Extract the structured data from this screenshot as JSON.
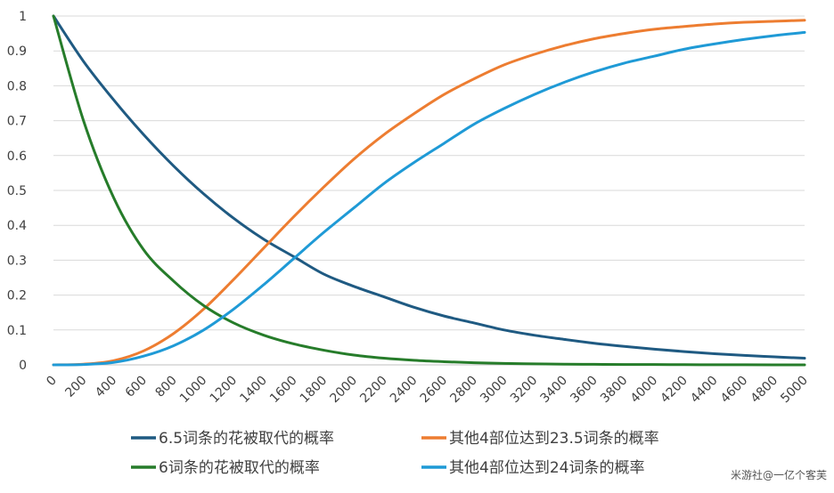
{
  "chart_data": {
    "type": "line",
    "x": [
      0,
      200,
      400,
      600,
      800,
      1000,
      1200,
      1400,
      1600,
      1800,
      2000,
      2200,
      2400,
      2600,
      2800,
      3000,
      3200,
      3400,
      3600,
      3800,
      4000,
      4200,
      4400,
      4600,
      4800,
      5000
    ],
    "xticks": [
      "0",
      "200",
      "400",
      "600",
      "800",
      "1000",
      "1200",
      "1400",
      "1600",
      "1800",
      "2000",
      "2200",
      "2400",
      "2600",
      "2800",
      "3000",
      "3200",
      "3400",
      "3600",
      "3800",
      "4000",
      "4200",
      "4400",
      "4600",
      "4800",
      "5000"
    ],
    "yticks": [
      "0",
      "0.1",
      "0.2",
      "0.3",
      "0.4",
      "0.5",
      "0.6",
      "0.7",
      "0.8",
      "0.9",
      "1"
    ],
    "xlim": [
      0,
      5000
    ],
    "ylim": [
      0,
      1
    ],
    "grid": "horizontal",
    "legend_position": "bottom",
    "series": [
      {
        "name": "6.5词条的花被取代的概率",
        "color": "#1f5a82",
        "values": [
          1.0,
          0.87,
          0.76,
          0.66,
          0.57,
          0.49,
          0.42,
          0.36,
          0.31,
          0.26,
          0.225,
          0.195,
          0.165,
          0.14,
          0.12,
          0.1,
          0.085,
          0.073,
          0.062,
          0.053,
          0.045,
          0.038,
          0.032,
          0.027,
          0.023,
          0.019
        ]
      },
      {
        "name": "其他4部位达到23.5词条的概率",
        "color": "#ed7d31",
        "values": [
          0.0,
          0.002,
          0.012,
          0.04,
          0.09,
          0.16,
          0.245,
          0.335,
          0.425,
          0.51,
          0.59,
          0.66,
          0.72,
          0.775,
          0.82,
          0.86,
          0.89,
          0.915,
          0.935,
          0.95,
          0.962,
          0.97,
          0.977,
          0.982,
          0.985,
          0.988
        ]
      },
      {
        "name": "6词条的花被取代的概率",
        "color": "#267c2a",
        "values": [
          1.0,
          0.7,
          0.48,
          0.33,
          0.24,
          0.17,
          0.12,
          0.085,
          0.06,
          0.042,
          0.028,
          0.019,
          0.013,
          0.009,
          0.006,
          0.004,
          0.003,
          0.002,
          0.0015,
          0.001,
          0.001,
          0.0005,
          0.0003,
          0.0002,
          0.0001,
          0.0001
        ]
      },
      {
        "name": "其他4部位达到24词条的概率",
        "color": "#1f9ad6",
        "values": [
          0.0,
          0.001,
          0.007,
          0.025,
          0.055,
          0.1,
          0.16,
          0.23,
          0.305,
          0.38,
          0.45,
          0.52,
          0.58,
          0.635,
          0.69,
          0.735,
          0.775,
          0.81,
          0.84,
          0.865,
          0.885,
          0.905,
          0.92,
          0.933,
          0.944,
          0.953
        ]
      }
    ]
  },
  "legend": {
    "item1": "6.5词条的花被取代的概率",
    "item2": "其他4部位达到23.5词条的概率",
    "item3": "6词条的花被取代的概率",
    "item4": "其他4部位达到24词条的概率"
  },
  "watermark": "米游社@一亿个客芙"
}
